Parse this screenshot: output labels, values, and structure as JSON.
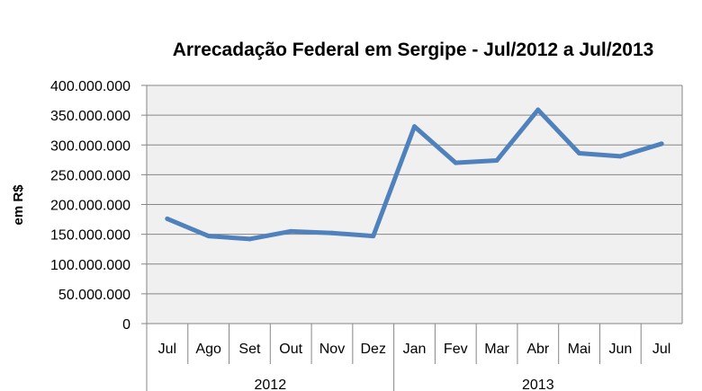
{
  "chart_data": {
    "type": "line",
    "title": "Arrecadação Federal em Sergipe - Jul/2012 a Jul/2013",
    "xlabel": "",
    "ylabel": "em R$",
    "ylim": [
      0,
      400000000
    ],
    "yticks": [
      0,
      50000000,
      100000000,
      150000000,
      200000000,
      250000000,
      300000000,
      350000000,
      400000000
    ],
    "ytick_labels": [
      "0",
      "50.000.000",
      "100.000.000",
      "150.000.000",
      "200.000.000",
      "250.000.000",
      "300.000.000",
      "350.000.000",
      "400.000.000"
    ],
    "categories": [
      "Jul",
      "Ago",
      "Set",
      "Out",
      "Nov",
      "Dez",
      "Jan",
      "Fev",
      "Mar",
      "Abr",
      "Mai",
      "Jun",
      "Jul"
    ],
    "groups": [
      {
        "label": "2012",
        "count": 6
      },
      {
        "label": "2013",
        "count": 7
      }
    ],
    "series": [
      {
        "values": [
          176000000,
          147000000,
          142000000,
          155000000,
          152000000,
          147000000,
          331000000,
          270000000,
          274000000,
          359000000,
          286000000,
          281000000,
          302000000
        ]
      }
    ],
    "colors": {
      "line": "#4f81bd",
      "plot_background": "#f0f0f0",
      "gridline": "#868686",
      "axis": "#868686"
    },
    "grid": true,
    "legend": "none"
  }
}
